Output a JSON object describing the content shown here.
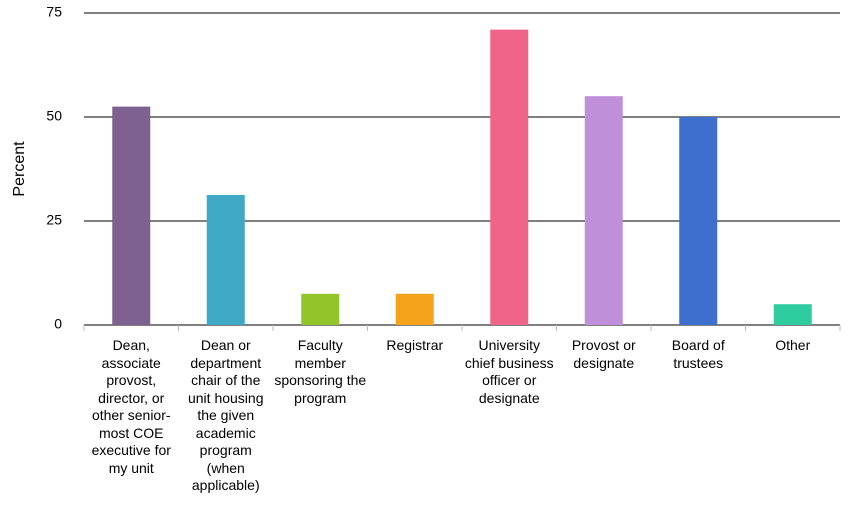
{
  "chart_data": {
    "type": "bar",
    "y_label": "Percent",
    "categories": [
      "Dean, associate provost, director, or other senior-most COE executive for my unit",
      "Dean or department chair of the unit housing the given academic program (when applicable)",
      "Faculty member sponsoring the program",
      "Registrar",
      "University chief business officer or designate",
      "Provost or designate",
      "Board of trustees",
      "Other"
    ],
    "values": [
      52.5,
      31.25,
      7.5,
      7.5,
      71,
      55,
      50,
      5
    ],
    "colors": [
      "#7e6191",
      "#3fa8c4",
      "#93c52b",
      "#f5a31a",
      "#f0648a",
      "#c08fd9",
      "#3f6fce",
      "#2ecc9e"
    ],
    "ylim": [
      0,
      75
    ],
    "yticks": [
      0,
      25,
      50,
      75
    ],
    "grid": true
  }
}
